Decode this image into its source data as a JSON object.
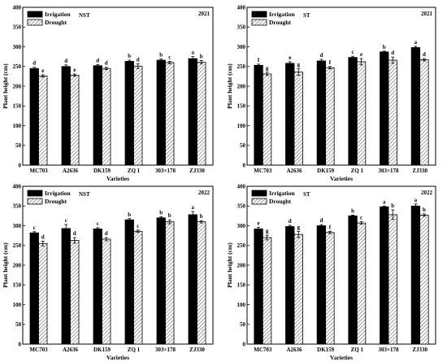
{
  "chart_data": [
    {
      "type": "bar",
      "panel_label": "NST",
      "year": "2021",
      "xlabel": "Varieties",
      "ylabel": "Plant height (cm)",
      "ylim": [
        0,
        400
      ],
      "yticks": [
        0,
        50,
        100,
        150,
        200,
        250,
        300,
        350,
        400
      ],
      "categories": [
        "MC703",
        "A2636",
        "DK159",
        "ZQ 1",
        "303×178",
        "ZJ330"
      ],
      "series": [
        {
          "name": "Irrigation",
          "values": [
            245,
            250,
            252,
            263,
            266,
            270
          ],
          "errors": [
            3,
            4,
            3,
            3,
            3,
            5
          ],
          "labels": [
            "d",
            "d",
            "d",
            "b",
            "b",
            "a"
          ]
        },
        {
          "name": "Drought",
          "values": [
            226,
            228,
            245,
            251,
            260,
            261
          ],
          "errors": [
            3,
            3,
            3,
            6,
            3,
            4
          ],
          "labels": [
            "e",
            "e",
            "d",
            "d",
            "c",
            "b"
          ]
        }
      ],
      "legend_position": "top-left"
    },
    {
      "type": "bar",
      "panel_label": "ST",
      "year": "2021",
      "xlabel": "Varieties",
      "ylabel": "Plant height (cm)",
      "ylim": [
        0,
        400
      ],
      "yticks": [
        0,
        50,
        100,
        150,
        200,
        250,
        300,
        350,
        400
      ],
      "categories": [
        "MC703",
        "A2636",
        "DK159",
        "ZQ 1",
        "303×178",
        "ZJ330"
      ],
      "series": [
        {
          "name": "Irrigation",
          "values": [
            253,
            258,
            264,
            273,
            287,
            298
          ],
          "errors": [
            3,
            4,
            4,
            3,
            2,
            3
          ],
          "labels": [
            "f",
            "e",
            "d",
            "c",
            "b",
            "a"
          ]
        },
        {
          "name": "Drought",
          "values": [
            231,
            236,
            247,
            262,
            266,
            267
          ],
          "errors": [
            4,
            8,
            3,
            8,
            8,
            3
          ],
          "labels": [
            "g",
            "g",
            "f",
            "e",
            "d",
            "d"
          ]
        }
      ],
      "legend_position": "top-left"
    },
    {
      "type": "bar",
      "panel_label": "NST",
      "year": "2022",
      "xlabel": "Varieties",
      "ylabel": "Plant height (cm)",
      "ylim": [
        0,
        400
      ],
      "yticks": [
        0,
        50,
        100,
        150,
        200,
        250,
        300,
        350,
        400
      ],
      "categories": [
        "MC703",
        "A2636",
        "DK159",
        "ZQ 1",
        "303×178",
        "ZJ330"
      ],
      "series": [
        {
          "name": "Irrigation",
          "values": [
            282,
            293,
            292,
            315,
            320,
            328
          ],
          "errors": [
            3,
            10,
            3,
            3,
            3,
            8
          ],
          "labels": [
            "c",
            "c",
            "c",
            "b",
            "b",
            "a"
          ]
        },
        {
          "name": "Drought",
          "values": [
            255,
            263,
            266,
            286,
            310,
            310
          ],
          "errors": [
            6,
            7,
            4,
            3,
            5,
            3
          ],
          "labels": [
            "d",
            "d",
            "d",
            "c",
            "b",
            "b"
          ]
        }
      ],
      "legend_position": "top-left"
    },
    {
      "type": "bar",
      "panel_label": "ST",
      "year": "2022",
      "xlabel": "Varieties",
      "ylabel": "Plant height (cm)",
      "ylim": [
        0,
        400
      ],
      "yticks": [
        0,
        50,
        100,
        150,
        200,
        250,
        300,
        350,
        400
      ],
      "categories": [
        "MC703",
        "A2636",
        "DK159",
        "ZQ 1",
        "303×178",
        "ZJ330"
      ],
      "series": [
        {
          "name": "Irrigation",
          "values": [
            292,
            298,
            300,
            325,
            348,
            350
          ],
          "errors": [
            4,
            3,
            3,
            2,
            2,
            5
          ],
          "labels": [
            "e",
            "d",
            "d",
            "b",
            "a",
            "a"
          ]
        },
        {
          "name": "Drought",
          "values": [
            270,
            278,
            283,
            307,
            328,
            327
          ],
          "errors": [
            6,
            8,
            3,
            3,
            12,
            3
          ],
          "labels": [
            "g",
            "g",
            "f",
            "c",
            "b",
            "b"
          ]
        }
      ],
      "legend_position": "top-left"
    }
  ]
}
